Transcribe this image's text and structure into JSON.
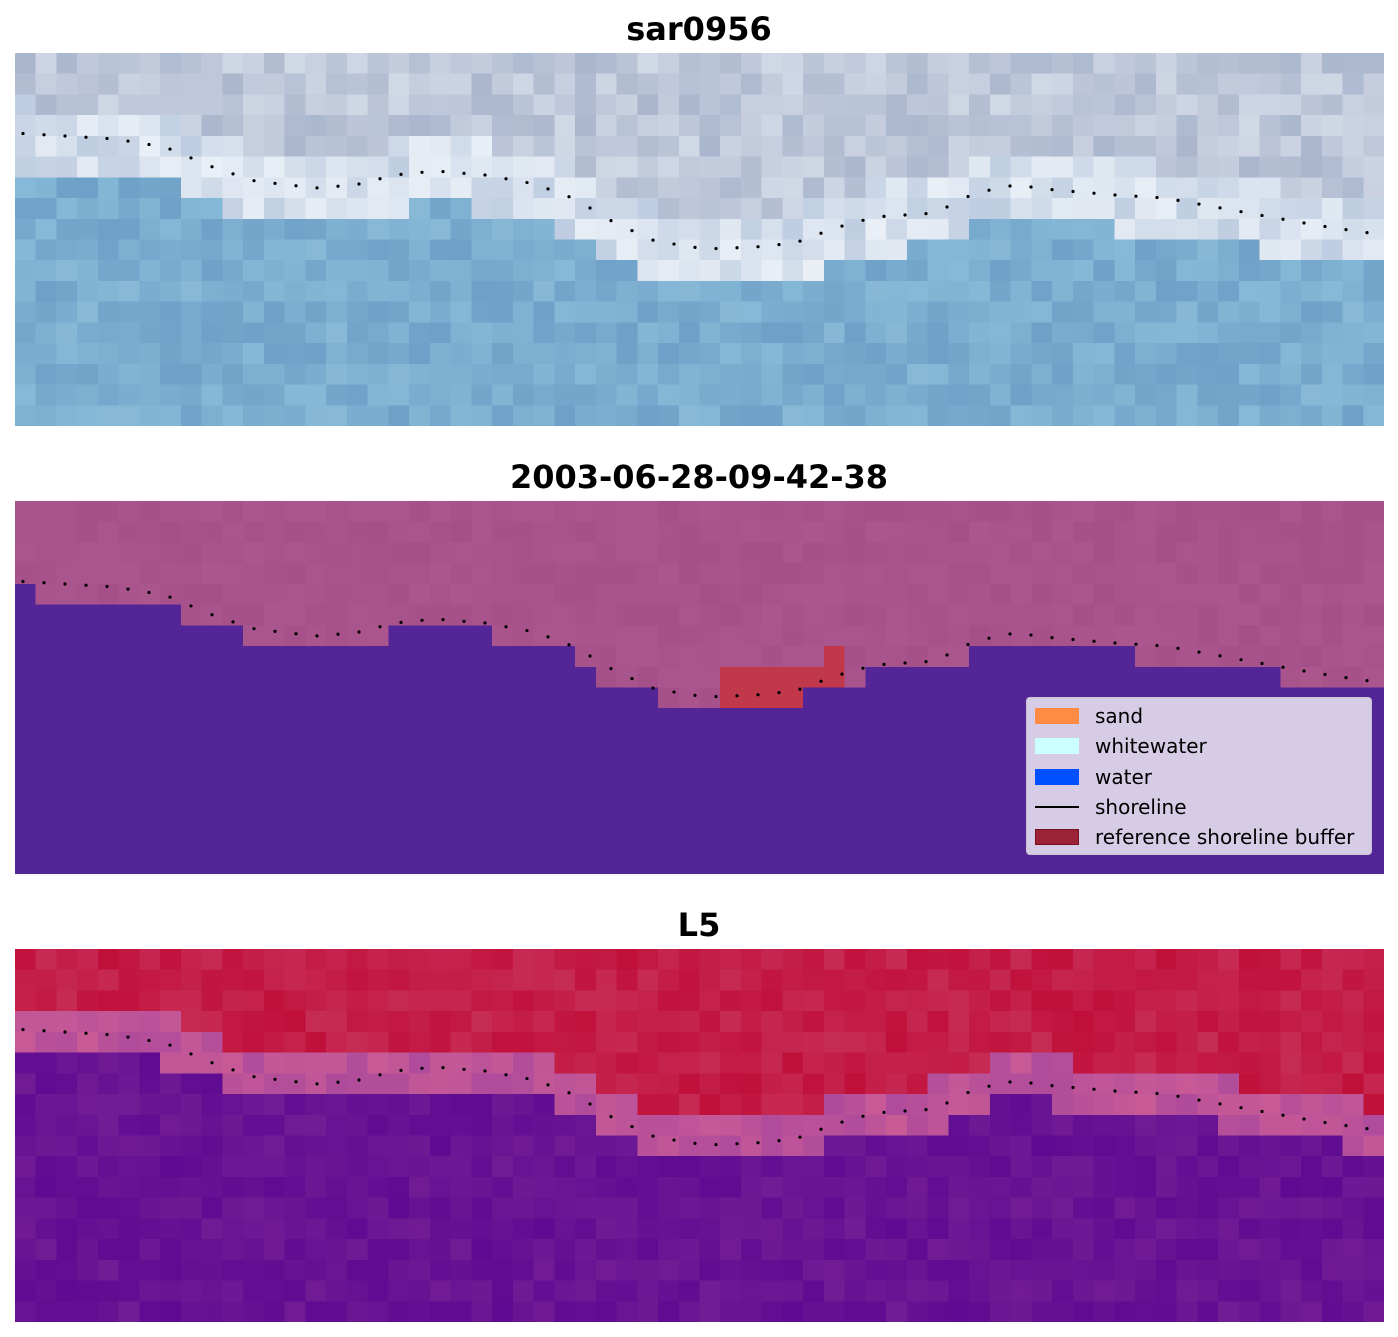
{
  "panels": [
    {
      "title": "sar0956",
      "palette": "rgb"
    },
    {
      "title": "2003-06-28-09-42-38",
      "palette": "class"
    },
    {
      "title": "L5",
      "palette": "index"
    }
  ],
  "legend": {
    "items": [
      {
        "label": "sand",
        "kind": "patch",
        "color": "#ff8c42",
        "border": "#ff8c42"
      },
      {
        "label": "whitewater",
        "kind": "patch",
        "color": "#ccffff",
        "border": "#ccffff"
      },
      {
        "label": "water",
        "kind": "patch",
        "color": "#0050ff",
        "border": "#0050ff"
      },
      {
        "label": "shoreline",
        "kind": "line",
        "color": "#000000"
      },
      {
        "label": "reference shoreline buffer",
        "kind": "patch",
        "color": "#9b2335",
        "border": "#7a0f1f"
      }
    ]
  },
  "shoreline_style": {
    "color": "#000000",
    "style": "dotted"
  },
  "colors": {
    "class_land": "#a6508a",
    "class_water": "#532597",
    "class_buffer": "#c0384a",
    "index_high": "#c0103a",
    "index_low": "#5e0a92"
  }
}
